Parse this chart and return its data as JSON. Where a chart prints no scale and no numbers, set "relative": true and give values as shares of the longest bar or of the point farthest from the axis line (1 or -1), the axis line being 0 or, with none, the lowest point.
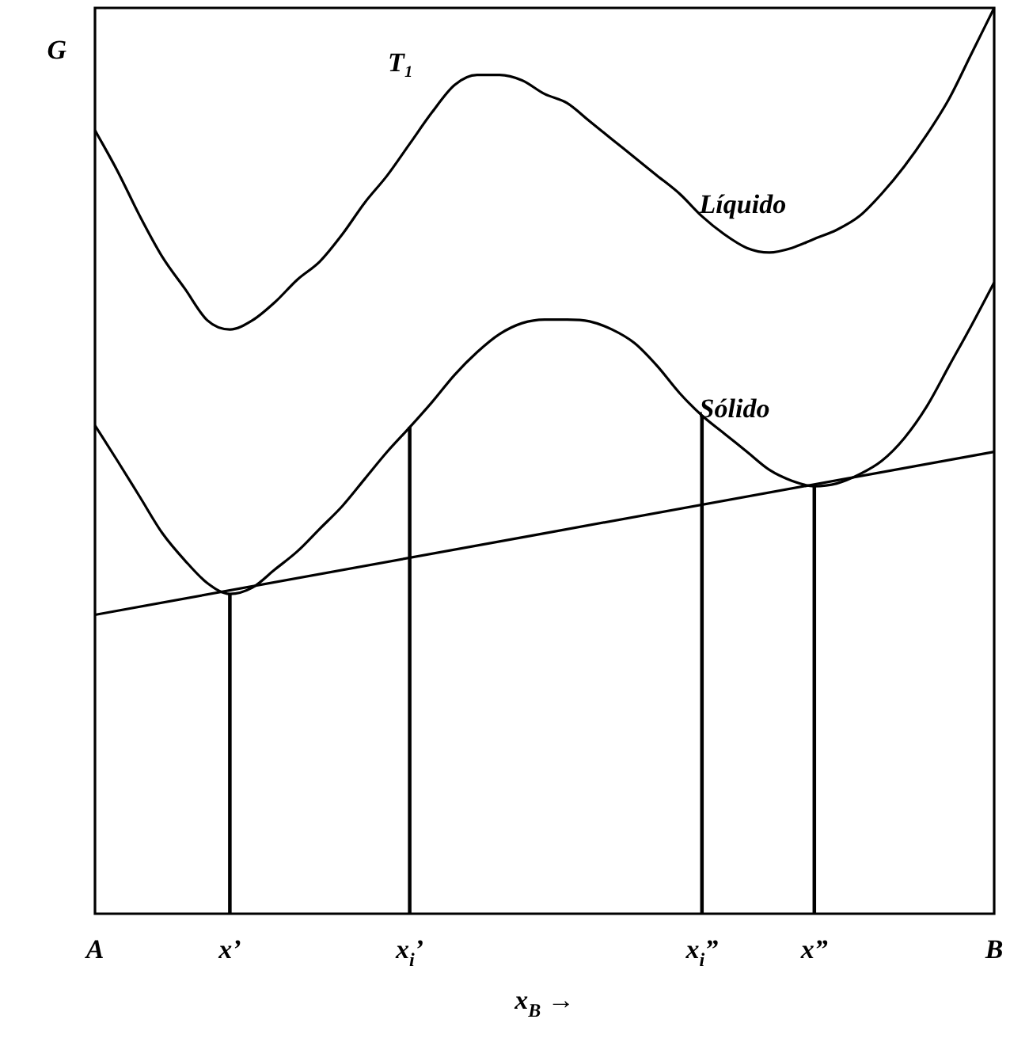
{
  "chart_data": {
    "type": "line",
    "relative": true,
    "ylabel": "G",
    "xlabel": "x$_{B}$ →",
    "annotations": [
      "T₁"
    ],
    "categories": [
      "A",
      null,
      null,
      null,
      null,
      null,
      "x’",
      null,
      null,
      null,
      null,
      null,
      null,
      null,
      "x$_{i}$’",
      null,
      null,
      null,
      null,
      null,
      null,
      null,
      null,
      null,
      null,
      null,
      null,
      "x$_{i}$”",
      null,
      null,
      null,
      null,
      "x”",
      null,
      null,
      null,
      null,
      null,
      null,
      null,
      "B"
    ],
    "marker": "none",
    "line_style": "solid",
    "grid": false,
    "legend": false,
    "series": [
      {
        "name": "Líquido",
        "color": "#000000",
        "values": [
          0.865,
          0.82,
          0.77,
          0.725,
          0.69,
          0.655,
          0.645,
          0.655,
          0.675,
          0.7,
          0.72,
          0.75,
          0.785,
          0.815,
          0.85,
          0.885,
          0.915,
          0.926,
          0.926,
          0.92,
          0.905,
          0.895,
          0.875,
          0.855,
          0.835,
          0.815,
          0.795,
          0.77,
          0.75,
          0.735,
          0.73,
          0.735,
          0.745,
          0.755,
          0.77,
          0.795,
          0.825,
          0.86,
          0.9,
          0.95,
          1.0
        ]
      },
      {
        "name": "Sólido",
        "color": "#000000",
        "values": [
          0.539,
          0.5,
          0.46,
          0.42,
          0.39,
          0.365,
          0.353,
          0.36,
          0.38,
          0.4,
          0.425,
          0.45,
          0.48,
          0.51,
          0.537,
          0.565,
          0.595,
          0.62,
          0.64,
          0.652,
          0.656,
          0.656,
          0.654,
          0.645,
          0.63,
          0.605,
          0.575,
          0.55,
          0.53,
          0.51,
          0.49,
          0.478,
          0.472,
          0.475,
          0.485,
          0.5,
          0.525,
          0.56,
          0.605,
          0.65,
          0.697
        ]
      },
      {
        "color": "#000000",
        "values": [
          0.33,
          null,
          null,
          null,
          null,
          null,
          null,
          null,
          null,
          null,
          null,
          null,
          null,
          null,
          null,
          null,
          null,
          null,
          null,
          null,
          null,
          null,
          null,
          null,
          null,
          null,
          null,
          null,
          null,
          null,
          null,
          null,
          null,
          null,
          null,
          null,
          null,
          null,
          null,
          null,
          0.51
        ]
      },
      {
        "type": "bar",
        "color": "#000000",
        "values": [
          null,
          null,
          null,
          null,
          null,
          null,
          0.353,
          null,
          null,
          null,
          null,
          null,
          null,
          null,
          0.537,
          null,
          null,
          null,
          null,
          null,
          null,
          null,
          null,
          null,
          null,
          null,
          null,
          0.55,
          null,
          null,
          null,
          null,
          0.472,
          null,
          null,
          null,
          null,
          null,
          null,
          null,
          null
        ]
      }
    ]
  }
}
